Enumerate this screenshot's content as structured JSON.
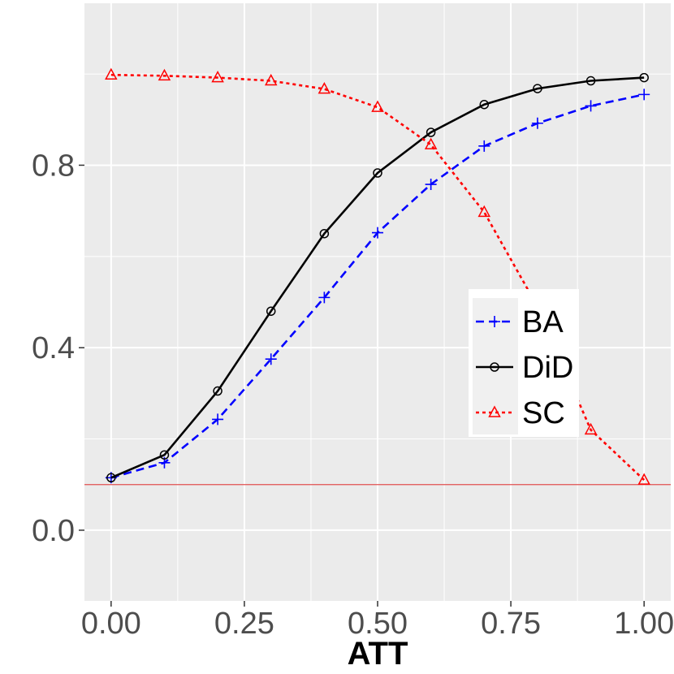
{
  "chart_data": {
    "type": "line",
    "title": "",
    "xlabel": "ATT",
    "ylabel": "",
    "xlim": [
      -0.05,
      1.05
    ],
    "ylim": [
      -0.155,
      1.155
    ],
    "x_ticks": [
      0.0,
      0.25,
      0.5,
      0.75,
      1.0
    ],
    "x_tick_labels": [
      "0.00",
      "0.25",
      "0.50",
      "0.75",
      "1.00"
    ],
    "y_ticks": [
      0.0,
      0.4,
      0.8
    ],
    "y_tick_labels": [
      "0.0",
      "0.4",
      "0.8"
    ],
    "grid": true,
    "legend_position": "right",
    "reference_line": {
      "y": 0.1,
      "color": "#e05050"
    },
    "x": [
      0.0,
      0.1,
      0.2,
      0.3,
      0.4,
      0.5,
      0.6,
      0.7,
      0.8,
      0.9,
      1.0
    ],
    "series": [
      {
        "name": "BA",
        "color": "#0000ff",
        "dash": "dashed",
        "marker": "plus",
        "values": [
          0.115,
          0.148,
          0.243,
          0.375,
          0.51,
          0.652,
          0.758,
          0.842,
          0.892,
          0.93,
          0.955
        ]
      },
      {
        "name": "DiD",
        "color": "#000000",
        "dash": "solid",
        "marker": "circle",
        "values": [
          0.115,
          0.165,
          0.305,
          0.48,
          0.65,
          0.783,
          0.872,
          0.933,
          0.968,
          0.985,
          0.992
        ]
      },
      {
        "name": "SC",
        "color": "#ff0000",
        "dash": "dotted",
        "marker": "triangle",
        "values": [
          0.998,
          0.996,
          0.992,
          0.985,
          0.967,
          0.927,
          0.845,
          0.697,
          0.49,
          0.22,
          0.11
        ]
      }
    ]
  }
}
